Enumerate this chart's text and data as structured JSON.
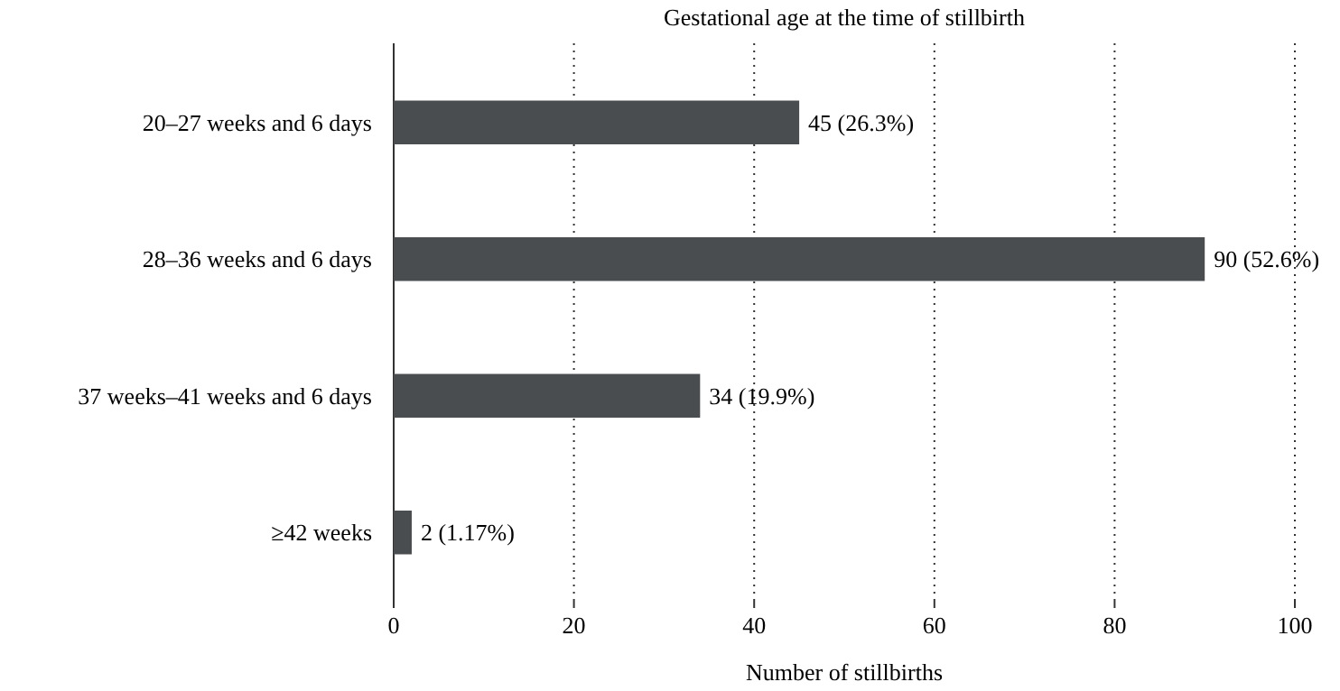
{
  "chart_data": {
    "type": "bar",
    "orientation": "horizontal",
    "title": "Gestational age at the time of stillbirth",
    "xlabel": "Number of stillbirths",
    "categories": [
      "20–27 weeks and 6 days",
      "28–36 weeks and 6 days",
      "37 weeks–41 weeks and 6 days",
      "≥42 weeks"
    ],
    "values": [
      45,
      90,
      34,
      2
    ],
    "value_labels": [
      "45 (26.3%)",
      "90 (52.6%)",
      "34 (19.9%)",
      "2 (1.17%)"
    ],
    "color": "#4a4d4f",
    "xlim": [
      0,
      100
    ],
    "xticks": [
      0,
      20,
      40,
      60,
      80,
      100
    ],
    "grid": "x"
  }
}
